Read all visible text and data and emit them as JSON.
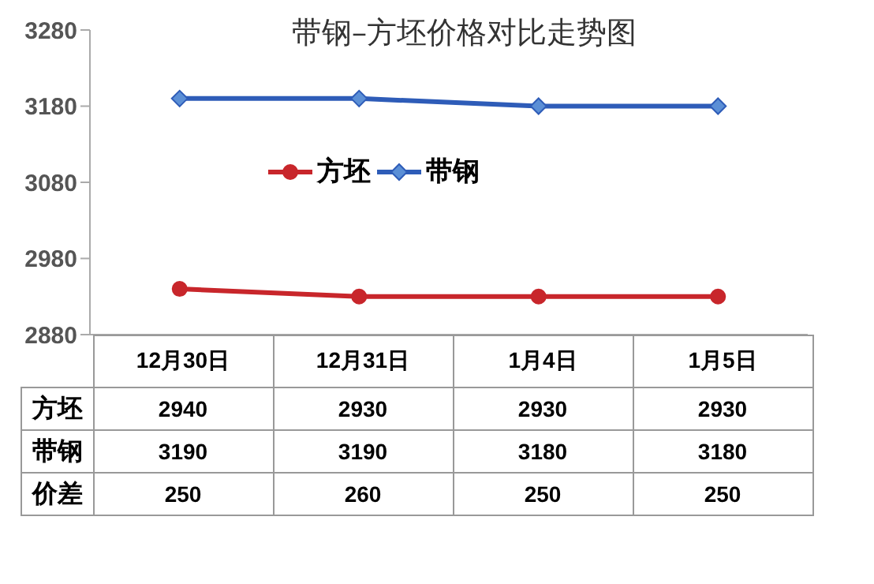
{
  "chart_data": {
    "type": "line",
    "title": "带钢–方坯价格对比走势图",
    "categories": [
      "12月30日",
      "12月31日",
      "1月4日",
      "1月5日"
    ],
    "series": [
      {
        "name": "方坯",
        "color": "#c8262b",
        "values": [
          2940,
          2930,
          2930,
          2930
        ],
        "marker": "circle"
      },
      {
        "name": "带钢",
        "color": "#2e5cb8",
        "values": [
          3190,
          3190,
          3180,
          3180
        ],
        "marker": "diamond"
      }
    ],
    "annotations": [
      "价差",
      "250",
      "260",
      "250",
      "250"
    ],
    "ylim": [
      2880,
      3280
    ],
    "yticks": [
      2880,
      2980,
      3080,
      3180,
      3280
    ],
    "grid": false,
    "legend": "center",
    "data_labels": true
  }
}
